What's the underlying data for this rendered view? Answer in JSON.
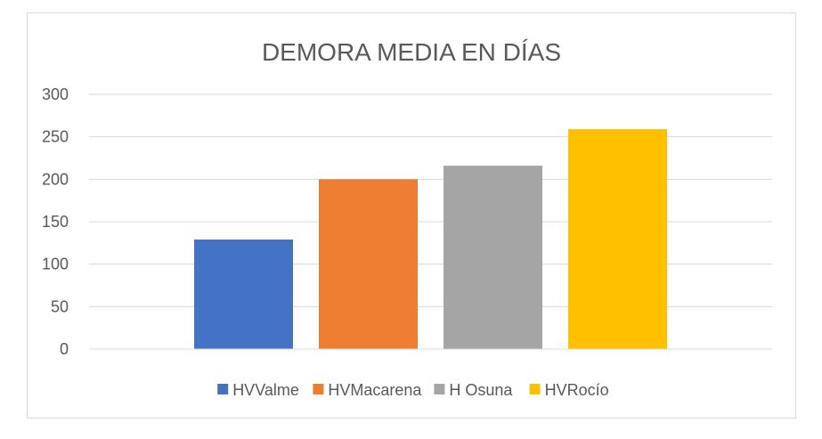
{
  "chart_data": {
    "type": "bar",
    "title": "DEMORA MEDIA EN DÍAS",
    "xlabel": "",
    "ylabel": "",
    "ylim": [
      0,
      300
    ],
    "yticks": [
      0,
      50,
      100,
      150,
      200,
      250,
      300
    ],
    "grid": true,
    "legend_position": "bottom",
    "series": [
      {
        "name": "HVValme",
        "value": 129,
        "color": "#4472C4"
      },
      {
        "name": "HVMacarena",
        "value": 200,
        "color": "#ED7D31"
      },
      {
        "name": "H Osuna",
        "value": 216,
        "color": "#A5A5A5"
      },
      {
        "name": "HVRocío",
        "value": 259,
        "color": "#FFC000"
      }
    ]
  }
}
